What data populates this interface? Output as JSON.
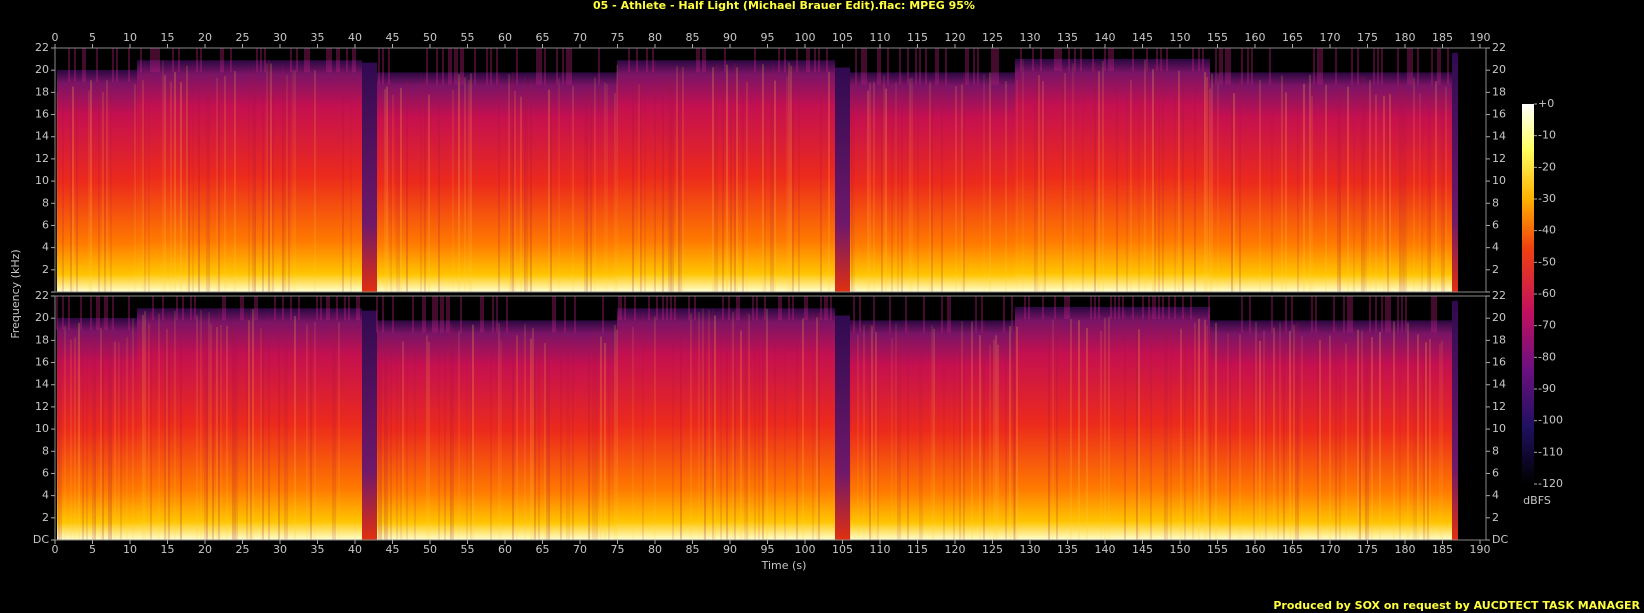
{
  "chart_data": {
    "type": "spectrogram",
    "title": "05 - Athlete - Half Light (Michael Brauer Edit).flac: MPEG 95%",
    "xlabel": "Time (s)",
    "ylabel": "Frequency (kHz)",
    "xlim": [
      0,
      190
    ],
    "xticks": [
      0,
      5,
      10,
      15,
      20,
      25,
      30,
      35,
      40,
      45,
      50,
      55,
      60,
      65,
      70,
      75,
      80,
      85,
      90,
      95,
      100,
      105,
      110,
      115,
      120,
      125,
      130,
      135,
      140,
      145,
      150,
      155,
      160,
      165,
      170,
      175,
      180,
      185,
      190
    ],
    "ylim": [
      0,
      22
    ],
    "yticks": [
      {
        "value": 0,
        "label": "DC"
      },
      2,
      4,
      6,
      8,
      10,
      12,
      14,
      16,
      18,
      20,
      22
    ],
    "colorbar": {
      "label": "dBFS",
      "lim": [
        -120,
        0
      ],
      "ticks": [
        {
          "value": 0,
          "label": "+0"
        },
        -10,
        -20,
        -30,
        -40,
        -50,
        -60,
        -70,
        -80,
        -90,
        -100,
        -110,
        -120
      ]
    },
    "footer": "Produced by SOX on request by AUCDTECT TASK MANAGER"
  }
}
